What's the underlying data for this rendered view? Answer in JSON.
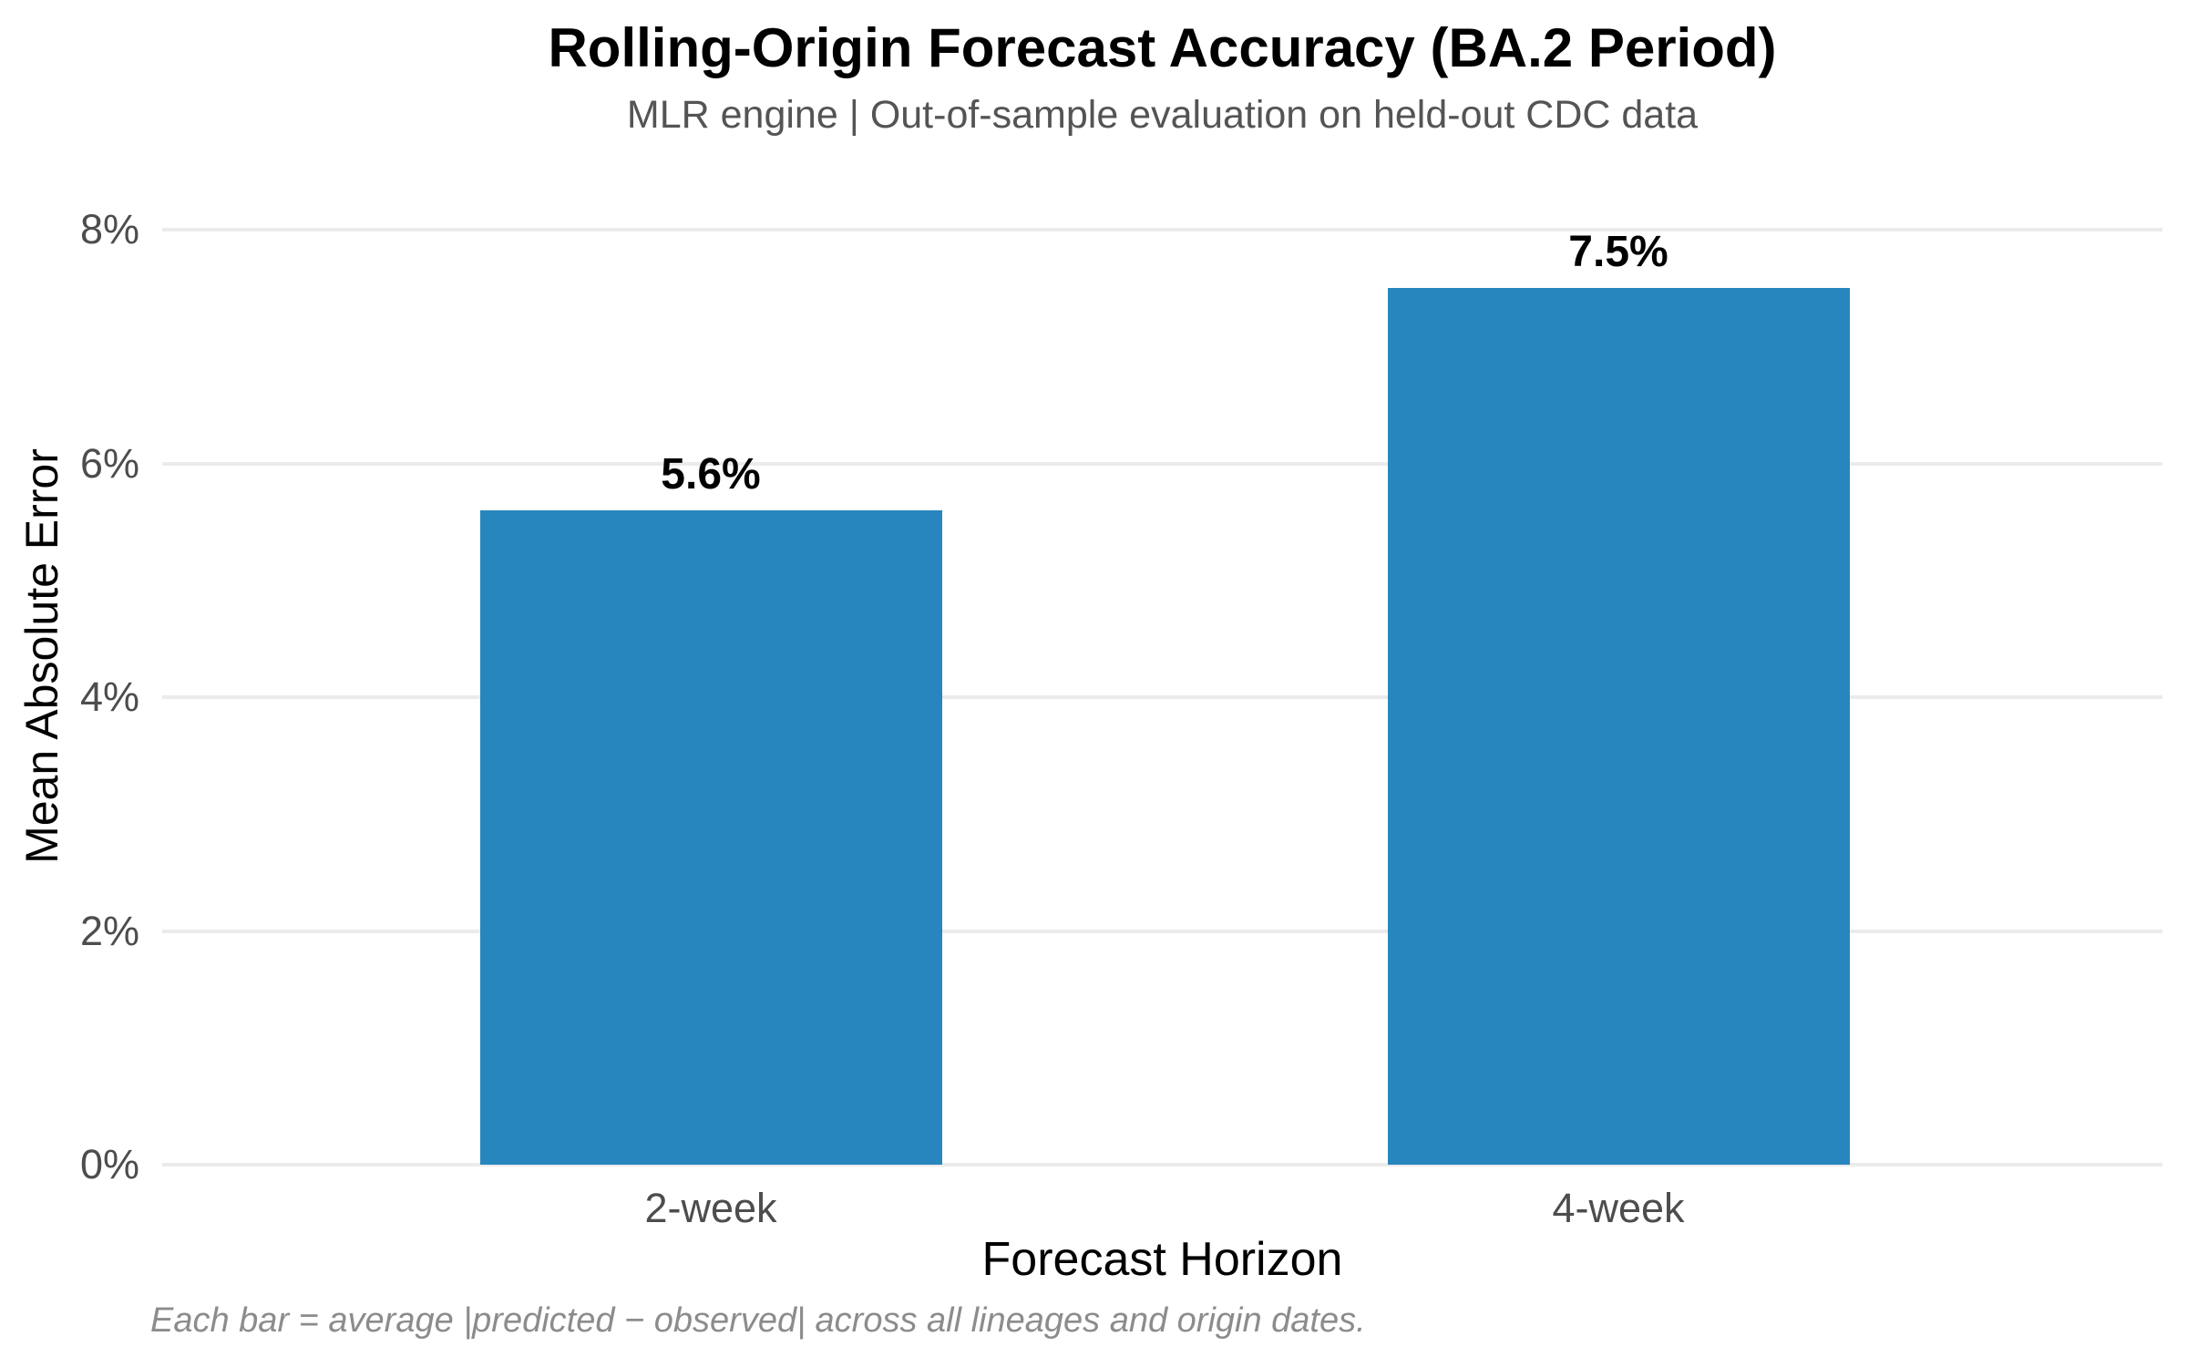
{
  "header": {
    "title": "Rolling-Origin Forecast Accuracy (BA.2 Period)",
    "subtitle": "MLR engine | Out-of-sample evaluation on held-out CDC data"
  },
  "footer": {
    "caption": "Each bar = average |predicted − observed| across all lineages and origin dates."
  },
  "colors": {
    "bar": "#2786bd",
    "gridline": "#ebebeb",
    "tick_label": "#4d4d4d",
    "subtitle_text": "#545454",
    "caption_text": "#8c8c8c",
    "title_text": "#000000"
  },
  "chart_data": {
    "type": "bar",
    "title": "Rolling-Origin Forecast Accuracy (BA.2 Period)",
    "subtitle": "MLR engine | Out-of-sample evaluation on held-out CDC data",
    "categories": [
      "2-week",
      "4-week"
    ],
    "values": [
      5.6,
      7.5
    ],
    "value_labels": [
      "5.6%",
      "7.5%"
    ],
    "xlabel": "Forecast Horizon",
    "ylabel": "Mean Absolute Error",
    "ylim": [
      0,
      8
    ],
    "yticks": [
      0,
      2,
      4,
      6,
      8
    ],
    "ytick_labels": [
      "0%",
      "2%",
      "4%",
      "6%",
      "8%"
    ],
    "grid": "horizontal-only",
    "legend": "none",
    "bar_color": "#2786bd"
  }
}
